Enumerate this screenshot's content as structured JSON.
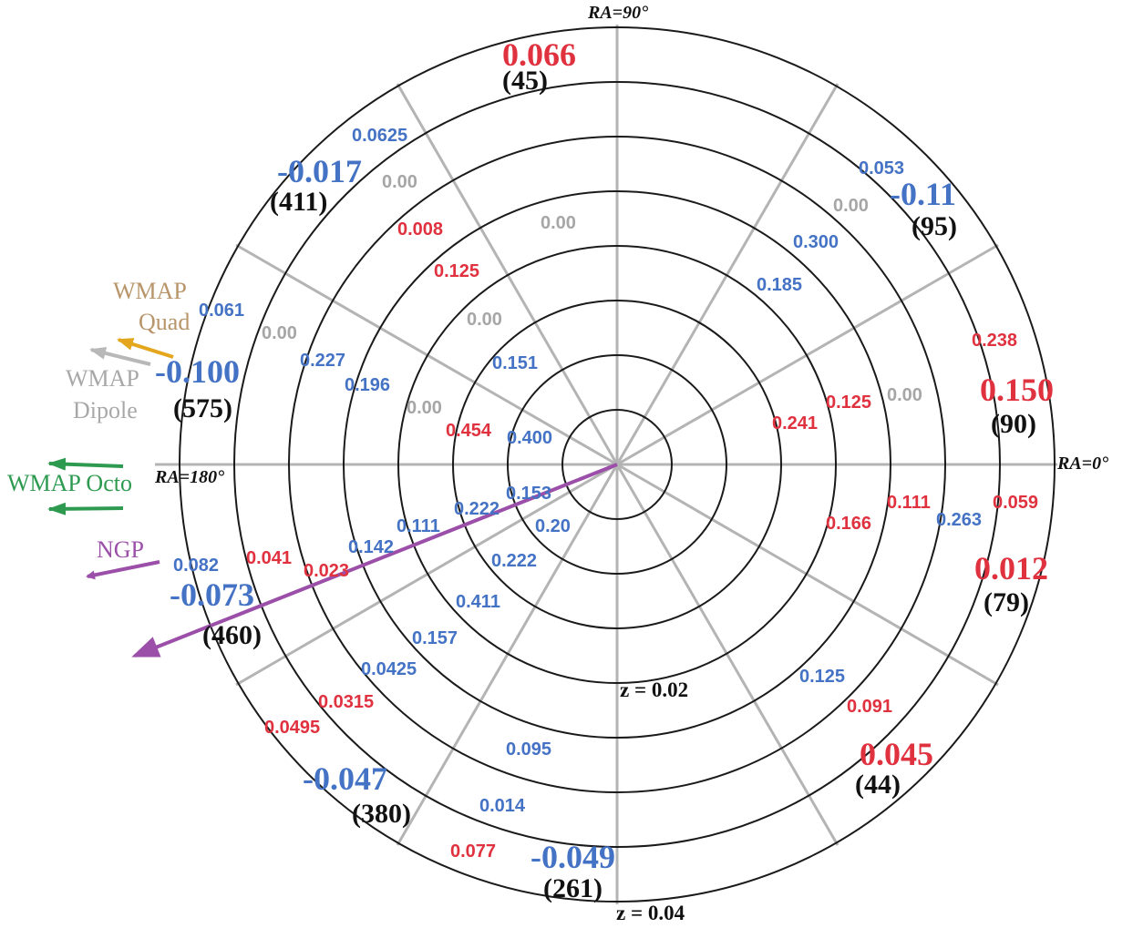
{
  "colors": {
    "ring": "#1a1a1a",
    "spoke": "#b4b4b4",
    "blue": "#4472c4",
    "red": "#e0313f",
    "gray": "#a6a6a6",
    "black": "#111111",
    "wmap_quad": "#b8956a",
    "wmap_quad_arrow": "#e4a61c",
    "wmap_dipole": "#a8a8a8",
    "wmap_octo": "#2e9a50",
    "ngp": "#9b4fa8"
  },
  "axis_labels": {
    "ra_90": "RA=90°",
    "ra_0": "RA=0°",
    "ra_180": "RA=180°",
    "z_002": "z = 0.02",
    "z_004": "z = 0.04"
  },
  "legend": {
    "wmap_quad_line1": "WMAP",
    "wmap_quad_line2": "Quad",
    "wmap_dipole_line1": "WMAP",
    "wmap_dipole_line2": "Dipole",
    "wmap_octo": "WMAP Octo",
    "ngp": "NGP"
  },
  "sector_values": [
    {
      "id": "s1",
      "value": "0.066",
      "count": "(45)",
      "value_color": "red"
    },
    {
      "id": "s2",
      "value": "-0.017",
      "count": "(411)",
      "value_color": "blue"
    },
    {
      "id": "s3",
      "value": "-0.11",
      "count": "(95)",
      "value_color": "blue"
    },
    {
      "id": "s4",
      "value": "-0.100",
      "count": "(575)",
      "value_color": "blue"
    },
    {
      "id": "s5",
      "value": "0.150",
      "count": "(90)",
      "value_color": "red"
    },
    {
      "id": "s6",
      "value": "-0.073",
      "count": "(460)",
      "value_color": "blue"
    },
    {
      "id": "s7",
      "value": "0.012",
      "count": "(79)",
      "value_color": "red"
    },
    {
      "id": "s8",
      "value": "0.045",
      "count": "(44)",
      "value_color": "red"
    },
    {
      "id": "s9",
      "value": "-0.047",
      "count": "(380)",
      "value_color": "blue"
    },
    {
      "id": "s10",
      "value": "-0.049",
      "count": "(261)",
      "value_color": "blue"
    }
  ],
  "cell_values": [
    {
      "text": "0.0625",
      "color": "blue"
    },
    {
      "text": "0.00",
      "color": "gray"
    },
    {
      "text": "0.008",
      "color": "red"
    },
    {
      "text": "0.00",
      "color": "gray"
    },
    {
      "text": "0.125",
      "color": "red"
    },
    {
      "text": "0.053",
      "color": "blue"
    },
    {
      "text": "0.00",
      "color": "gray"
    },
    {
      "text": "0.300",
      "color": "blue"
    },
    {
      "text": "0.185",
      "color": "blue"
    },
    {
      "text": "0.061",
      "color": "blue"
    },
    {
      "text": "0.00",
      "color": "gray"
    },
    {
      "text": "0.00",
      "color": "gray"
    },
    {
      "text": "0.227",
      "color": "blue"
    },
    {
      "text": "0.196",
      "color": "blue"
    },
    {
      "text": "0.151",
      "color": "blue"
    },
    {
      "text": "0.00",
      "color": "gray"
    },
    {
      "text": "0.454",
      "color": "red"
    },
    {
      "text": "0.400",
      "color": "blue"
    },
    {
      "text": "0.238",
      "color": "red"
    },
    {
      "text": "0.125",
      "color": "red"
    },
    {
      "text": "0.00",
      "color": "gray"
    },
    {
      "text": "0.241",
      "color": "red"
    },
    {
      "text": "0.153",
      "color": "blue"
    },
    {
      "text": "0.222",
      "color": "blue"
    },
    {
      "text": "0.20",
      "color": "blue"
    },
    {
      "text": "0.111",
      "color": "blue"
    },
    {
      "text": "0.142",
      "color": "blue"
    },
    {
      "text": "0.222",
      "color": "blue"
    },
    {
      "text": "0.082",
      "color": "blue"
    },
    {
      "text": "0.041",
      "color": "red"
    },
    {
      "text": "0.023",
      "color": "red"
    },
    {
      "text": "0.411",
      "color": "blue"
    },
    {
      "text": "0.157",
      "color": "blue"
    },
    {
      "text": "0.0425",
      "color": "blue"
    },
    {
      "text": "0.0315",
      "color": "red"
    },
    {
      "text": "0.0495",
      "color": "red"
    },
    {
      "text": "0.095",
      "color": "blue"
    },
    {
      "text": "0.014",
      "color": "blue"
    },
    {
      "text": "0.077",
      "color": "red"
    },
    {
      "text": "0.166",
      "color": "red"
    },
    {
      "text": "0.111",
      "color": "red"
    },
    {
      "text": "0.263",
      "color": "blue"
    },
    {
      "text": "0.059",
      "color": "red"
    },
    {
      "text": "0.125",
      "color": "blue"
    },
    {
      "text": "0.091",
      "color": "red"
    }
  ]
}
